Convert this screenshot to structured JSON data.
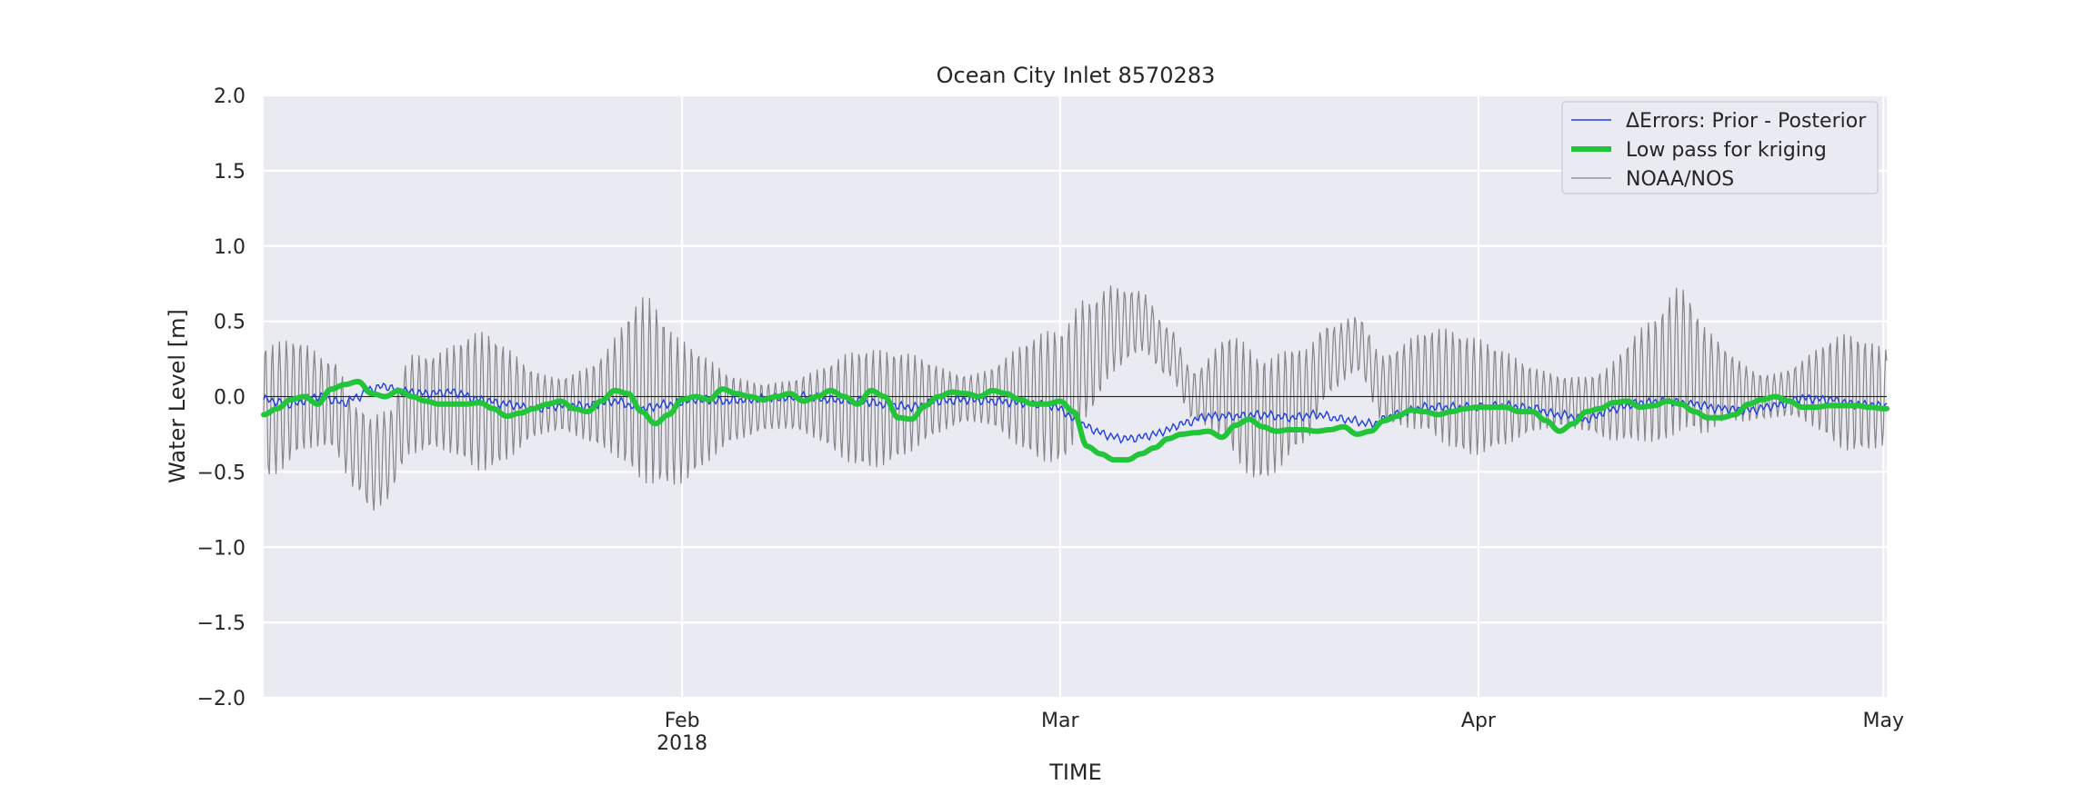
{
  "chart_data": {
    "type": "line",
    "title": "Ocean City Inlet  8570283",
    "xlabel": "TIME",
    "ylabel": "Water Level [m]",
    "ylim": [
      -2.0,
      2.0
    ],
    "xlim": [
      "2018-01-01",
      "2018-05-01T06:00"
    ],
    "y_ticks": [
      2.0,
      1.5,
      1.0,
      0.5,
      0.0,
      -0.5,
      -1.0,
      -1.5,
      -2.0
    ],
    "y_tick_labels": [
      "2.0",
      "1.5",
      "1.0",
      "0.5",
      "0.0",
      "−0.5",
      "−1.0",
      "−1.5",
      "−2.0"
    ],
    "x_ticks": [
      {
        "date": "2018-02-01",
        "label": "Feb",
        "sublabel": "2018"
      },
      {
        "date": "2018-03-01",
        "label": "Mar",
        "sublabel": ""
      },
      {
        "date": "2018-04-01",
        "label": "Apr",
        "sublabel": ""
      },
      {
        "date": "2018-05-01",
        "label": "May",
        "sublabel": ""
      }
    ],
    "grid": true,
    "zero_line": true,
    "legend_position": "top-right",
    "series": [
      {
        "name": "ΔErrors: Prior - Posterior",
        "color": "#1f3fe6",
        "style": "thin",
        "points": [
          [
            "2018-01-01",
            -0.02
          ],
          [
            "2018-01-03",
            -0.05
          ],
          [
            "2018-01-05",
            0.0
          ],
          [
            "2018-01-07",
            -0.04
          ],
          [
            "2018-01-08",
            0.0
          ],
          [
            "2018-01-09",
            0.05
          ],
          [
            "2018-01-10",
            0.07
          ],
          [
            "2018-01-11",
            0.04
          ],
          [
            "2018-01-13",
            0.02
          ],
          [
            "2018-01-15",
            0.03
          ],
          [
            "2018-01-17",
            -0.02
          ],
          [
            "2018-01-19",
            -0.05
          ],
          [
            "2018-01-21",
            -0.08
          ],
          [
            "2018-01-23",
            -0.06
          ],
          [
            "2018-01-25",
            -0.06
          ],
          [
            "2018-01-27",
            -0.03
          ],
          [
            "2018-01-29",
            -0.08
          ],
          [
            "2018-01-31",
            -0.05
          ],
          [
            "2018-02-02",
            -0.02
          ],
          [
            "2018-02-04",
            -0.03
          ],
          [
            "2018-02-06",
            -0.02
          ],
          [
            "2018-02-08",
            -0.01
          ],
          [
            "2018-02-10",
            0.0
          ],
          [
            "2018-02-12",
            -0.02
          ],
          [
            "2018-02-14",
            -0.03
          ],
          [
            "2018-02-16",
            -0.05
          ],
          [
            "2018-02-18",
            -0.07
          ],
          [
            "2018-02-20",
            -0.03
          ],
          [
            "2018-02-22",
            -0.02
          ],
          [
            "2018-02-24",
            -0.03
          ],
          [
            "2018-02-26",
            -0.04
          ],
          [
            "2018-02-28",
            -0.05
          ],
          [
            "2018-03-01",
            -0.08
          ],
          [
            "2018-03-02",
            -0.15
          ],
          [
            "2018-03-03",
            -0.2
          ],
          [
            "2018-03-04",
            -0.24
          ],
          [
            "2018-03-05",
            -0.27
          ],
          [
            "2018-03-06",
            -0.28
          ],
          [
            "2018-03-07",
            -0.27
          ],
          [
            "2018-03-08",
            -0.25
          ],
          [
            "2018-03-09",
            -0.22
          ],
          [
            "2018-03-10",
            -0.18
          ],
          [
            "2018-03-12",
            -0.13
          ],
          [
            "2018-03-14",
            -0.13
          ],
          [
            "2018-03-16",
            -0.12
          ],
          [
            "2018-03-18",
            -0.14
          ],
          [
            "2018-03-20",
            -0.12
          ],
          [
            "2018-03-22",
            -0.15
          ],
          [
            "2018-03-24",
            -0.18
          ],
          [
            "2018-03-26",
            -0.12
          ],
          [
            "2018-03-28",
            -0.07
          ],
          [
            "2018-03-30",
            -0.07
          ],
          [
            "2018-04-01",
            -0.07
          ],
          [
            "2018-04-03",
            -0.06
          ],
          [
            "2018-04-05",
            -0.08
          ],
          [
            "2018-04-07",
            -0.12
          ],
          [
            "2018-04-09",
            -0.15
          ],
          [
            "2018-04-11",
            -0.08
          ],
          [
            "2018-04-13",
            -0.04
          ],
          [
            "2018-04-15",
            -0.03
          ],
          [
            "2018-04-17",
            -0.05
          ],
          [
            "2018-04-19",
            -0.08
          ],
          [
            "2018-04-21",
            -0.09
          ],
          [
            "2018-04-23",
            -0.06
          ],
          [
            "2018-04-25",
            -0.01
          ],
          [
            "2018-04-27",
            -0.02
          ],
          [
            "2018-04-29",
            -0.05
          ],
          [
            "2018-05-01",
            -0.06
          ]
        ]
      },
      {
        "name": "Low pass for kriging",
        "color": "#22c43a",
        "style": "thick",
        "points": [
          [
            "2018-01-01",
            -0.12
          ],
          [
            "2018-01-02",
            -0.08
          ],
          [
            "2018-01-03",
            -0.02
          ],
          [
            "2018-01-04",
            0.0
          ],
          [
            "2018-01-05",
            -0.05
          ],
          [
            "2018-01-06",
            0.05
          ],
          [
            "2018-01-07",
            0.08
          ],
          [
            "2018-01-08",
            0.1
          ],
          [
            "2018-01-09",
            0.02
          ],
          [
            "2018-01-10",
            0.0
          ],
          [
            "2018-01-11",
            0.04
          ],
          [
            "2018-01-12",
            0.0
          ],
          [
            "2018-01-13",
            -0.03
          ],
          [
            "2018-01-14",
            -0.05
          ],
          [
            "2018-01-15",
            -0.05
          ],
          [
            "2018-01-16",
            -0.05
          ],
          [
            "2018-01-17",
            -0.04
          ],
          [
            "2018-01-18",
            -0.08
          ],
          [
            "2018-01-19",
            -0.13
          ],
          [
            "2018-01-20",
            -0.11
          ],
          [
            "2018-01-21",
            -0.08
          ],
          [
            "2018-01-22",
            -0.05
          ],
          [
            "2018-01-23",
            -0.03
          ],
          [
            "2018-01-24",
            -0.08
          ],
          [
            "2018-01-25",
            -0.1
          ],
          [
            "2018-01-26",
            -0.03
          ],
          [
            "2018-01-27",
            0.04
          ],
          [
            "2018-01-28",
            0.02
          ],
          [
            "2018-01-29",
            -0.1
          ],
          [
            "2018-01-30",
            -0.18
          ],
          [
            "2018-01-31",
            -0.12
          ],
          [
            "2018-02-01",
            -0.02
          ],
          [
            "2018-02-02",
            0.0
          ],
          [
            "2018-02-03",
            -0.02
          ],
          [
            "2018-02-04",
            0.05
          ],
          [
            "2018-02-05",
            0.02
          ],
          [
            "2018-02-06",
            0.0
          ],
          [
            "2018-02-07",
            -0.02
          ],
          [
            "2018-02-08",
            0.0
          ],
          [
            "2018-02-09",
            0.02
          ],
          [
            "2018-02-10",
            -0.03
          ],
          [
            "2018-02-11",
            0.0
          ],
          [
            "2018-02-12",
            0.04
          ],
          [
            "2018-02-13",
            0.0
          ],
          [
            "2018-02-14",
            -0.05
          ],
          [
            "2018-02-15",
            0.04
          ],
          [
            "2018-02-16",
            0.0
          ],
          [
            "2018-02-17",
            -0.14
          ],
          [
            "2018-02-18",
            -0.15
          ],
          [
            "2018-02-19",
            -0.06
          ],
          [
            "2018-02-20",
            0.0
          ],
          [
            "2018-02-21",
            0.03
          ],
          [
            "2018-02-22",
            0.02
          ],
          [
            "2018-02-23",
            0.0
          ],
          [
            "2018-02-24",
            0.04
          ],
          [
            "2018-02-25",
            0.02
          ],
          [
            "2018-02-26",
            -0.02
          ],
          [
            "2018-02-27",
            -0.05
          ],
          [
            "2018-02-28",
            -0.05
          ],
          [
            "2018-03-01",
            -0.03
          ],
          [
            "2018-03-02",
            -0.1
          ],
          [
            "2018-03-03",
            -0.33
          ],
          [
            "2018-03-04",
            -0.38
          ],
          [
            "2018-03-05",
            -0.42
          ],
          [
            "2018-03-06",
            -0.42
          ],
          [
            "2018-03-07",
            -0.38
          ],
          [
            "2018-03-08",
            -0.34
          ],
          [
            "2018-03-09",
            -0.28
          ],
          [
            "2018-03-10",
            -0.25
          ],
          [
            "2018-03-11",
            -0.24
          ],
          [
            "2018-03-12",
            -0.23
          ],
          [
            "2018-03-13",
            -0.27
          ],
          [
            "2018-03-14",
            -0.19
          ],
          [
            "2018-03-15",
            -0.15
          ],
          [
            "2018-03-16",
            -0.2
          ],
          [
            "2018-03-17",
            -0.23
          ],
          [
            "2018-03-18",
            -0.22
          ],
          [
            "2018-03-19",
            -0.22
          ],
          [
            "2018-03-20",
            -0.23
          ],
          [
            "2018-03-21",
            -0.22
          ],
          [
            "2018-03-22",
            -0.2
          ],
          [
            "2018-03-23",
            -0.25
          ],
          [
            "2018-03-24",
            -0.23
          ],
          [
            "2018-03-25",
            -0.16
          ],
          [
            "2018-03-26",
            -0.13
          ],
          [
            "2018-03-27",
            -0.09
          ],
          [
            "2018-03-28",
            -0.1
          ],
          [
            "2018-03-29",
            -0.12
          ],
          [
            "2018-03-30",
            -0.1
          ],
          [
            "2018-03-31",
            -0.08
          ],
          [
            "2018-04-01",
            -0.07
          ],
          [
            "2018-04-02",
            -0.07
          ],
          [
            "2018-04-03",
            -0.07
          ],
          [
            "2018-04-04",
            -0.1
          ],
          [
            "2018-04-05",
            -0.1
          ],
          [
            "2018-04-06",
            -0.16
          ],
          [
            "2018-04-07",
            -0.23
          ],
          [
            "2018-04-08",
            -0.18
          ],
          [
            "2018-04-09",
            -0.1
          ],
          [
            "2018-04-10",
            -0.08
          ],
          [
            "2018-04-11",
            -0.04
          ],
          [
            "2018-04-12",
            -0.03
          ],
          [
            "2018-04-13",
            -0.07
          ],
          [
            "2018-04-14",
            -0.06
          ],
          [
            "2018-04-15",
            -0.03
          ],
          [
            "2018-04-16",
            -0.05
          ],
          [
            "2018-04-17",
            -0.1
          ],
          [
            "2018-04-18",
            -0.14
          ],
          [
            "2018-04-19",
            -0.14
          ],
          [
            "2018-04-20",
            -0.12
          ],
          [
            "2018-04-21",
            -0.05
          ],
          [
            "2018-04-22",
            -0.02
          ],
          [
            "2018-04-23",
            0.0
          ],
          [
            "2018-04-24",
            -0.03
          ],
          [
            "2018-04-25",
            -0.07
          ],
          [
            "2018-04-26",
            -0.07
          ],
          [
            "2018-04-27",
            -0.06
          ],
          [
            "2018-04-28",
            -0.06
          ],
          [
            "2018-04-29",
            -0.06
          ],
          [
            "2018-04-30",
            -0.07
          ],
          [
            "2018-05-01",
            -0.08
          ]
        ]
      },
      {
        "name": "NOAA/NOS",
        "color": "#858585",
        "style": "tidal",
        "period_hours": 12.42,
        "mean_points": [
          [
            "2018-01-01",
            -0.1
          ],
          [
            "2018-01-04",
            0.0
          ],
          [
            "2018-01-06",
            -0.05
          ],
          [
            "2018-01-08",
            -0.35
          ],
          [
            "2018-01-09",
            -0.45
          ],
          [
            "2018-01-10",
            -0.4
          ],
          [
            "2018-01-12",
            -0.05
          ],
          [
            "2018-01-15",
            -0.02
          ],
          [
            "2018-01-20",
            -0.05
          ],
          [
            "2018-01-25",
            -0.05
          ],
          [
            "2018-01-29",
            0.05
          ],
          [
            "2018-02-01",
            -0.1
          ],
          [
            "2018-02-05",
            -0.08
          ],
          [
            "2018-02-10",
            -0.05
          ],
          [
            "2018-02-15",
            -0.08
          ],
          [
            "2018-02-20",
            -0.02
          ],
          [
            "2018-02-25",
            0.0
          ],
          [
            "2018-03-01",
            0.0
          ],
          [
            "2018-03-03",
            0.25
          ],
          [
            "2018-03-05",
            0.45
          ],
          [
            "2018-03-07",
            0.5
          ],
          [
            "2018-03-09",
            0.3
          ],
          [
            "2018-03-11",
            0.0
          ],
          [
            "2018-03-13",
            0.05
          ],
          [
            "2018-03-16",
            -0.15
          ],
          [
            "2018-03-19",
            0.0
          ],
          [
            "2018-03-21",
            0.25
          ],
          [
            "2018-03-23",
            0.35
          ],
          [
            "2018-03-25",
            0.05
          ],
          [
            "2018-03-28",
            0.1
          ],
          [
            "2018-04-01",
            0.0
          ],
          [
            "2018-04-05",
            -0.02
          ],
          [
            "2018-04-10",
            -0.05
          ],
          [
            "2018-04-14",
            0.1
          ],
          [
            "2018-04-16",
            0.25
          ],
          [
            "2018-04-18",
            0.1
          ],
          [
            "2018-04-22",
            0.0
          ],
          [
            "2018-04-26",
            0.05
          ],
          [
            "2018-05-01",
            0.0
          ]
        ],
        "amplitude_points": [
          [
            "2018-01-01",
            0.45
          ],
          [
            "2018-01-05",
            0.45
          ],
          [
            "2018-01-07",
            0.6
          ],
          [
            "2018-01-09",
            0.7
          ],
          [
            "2018-01-11",
            0.5
          ],
          [
            "2018-01-14",
            0.35
          ],
          [
            "2018-01-18",
            0.5
          ],
          [
            "2018-01-22",
            0.4
          ],
          [
            "2018-01-26",
            0.5
          ],
          [
            "2018-01-29",
            0.65
          ],
          [
            "2018-02-01",
            0.5
          ],
          [
            "2018-02-05",
            0.4
          ],
          [
            "2018-02-10",
            0.3
          ],
          [
            "2018-02-15",
            0.4
          ],
          [
            "2018-02-19",
            0.45
          ],
          [
            "2018-02-23",
            0.35
          ],
          [
            "2018-02-27",
            0.45
          ],
          [
            "2018-03-01",
            0.45
          ],
          [
            "2018-03-05",
            0.4
          ],
          [
            "2018-03-08",
            0.4
          ],
          [
            "2018-03-11",
            0.3
          ],
          [
            "2018-03-14",
            0.45
          ],
          [
            "2018-03-17",
            0.4
          ],
          [
            "2018-03-21",
            0.4
          ],
          [
            "2018-03-25",
            0.45
          ],
          [
            "2018-03-29",
            0.4
          ],
          [
            "2018-04-02",
            0.4
          ],
          [
            "2018-04-06",
            0.4
          ],
          [
            "2018-04-10",
            0.35
          ],
          [
            "2018-04-13",
            0.4
          ],
          [
            "2018-04-16",
            0.5
          ],
          [
            "2018-04-20",
            0.4
          ],
          [
            "2018-04-24",
            0.3
          ],
          [
            "2018-04-28",
            0.4
          ],
          [
            "2018-05-01",
            0.35
          ]
        ]
      }
    ]
  }
}
